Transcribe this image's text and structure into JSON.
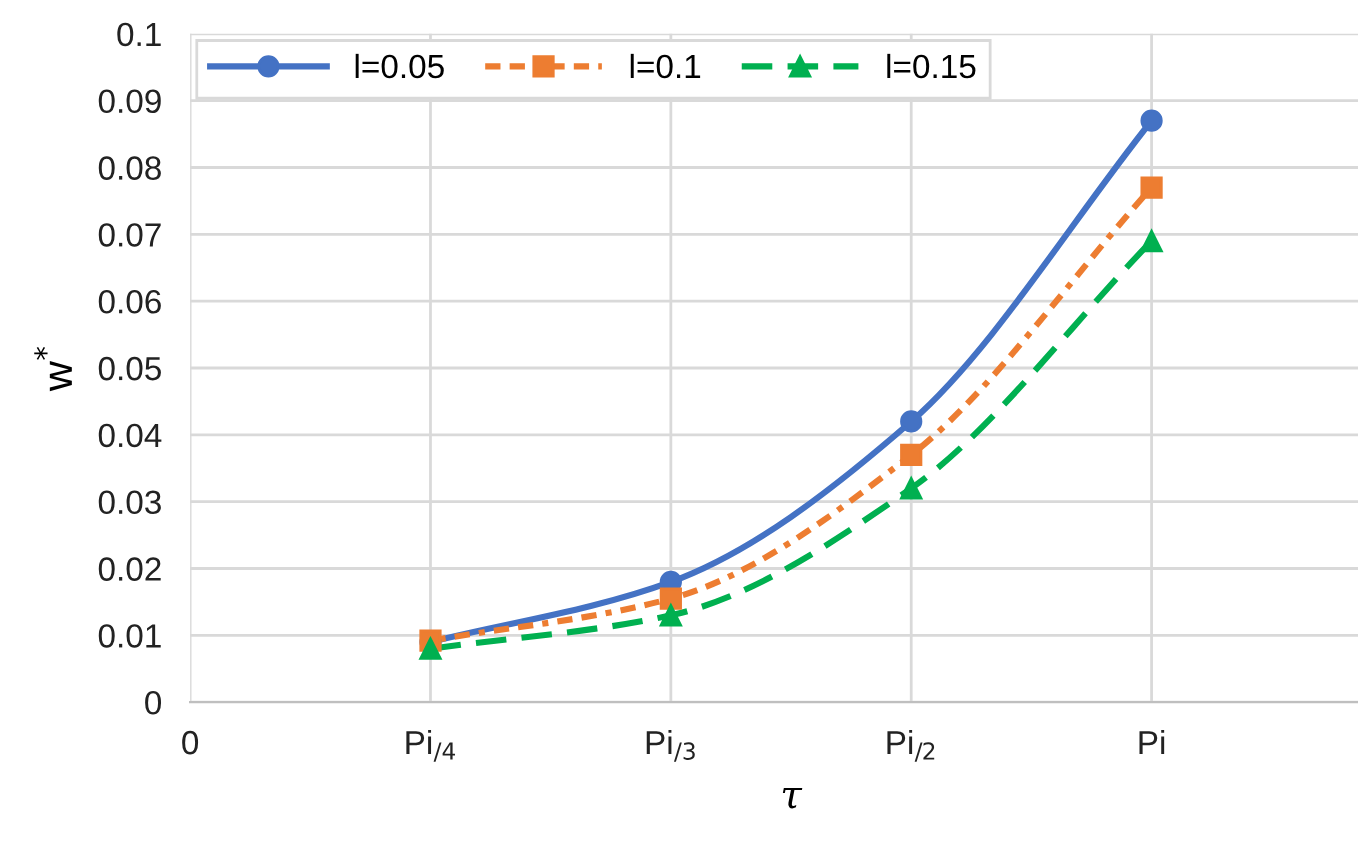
{
  "chart_data": {
    "type": "line",
    "xlabel": "τ",
    "ylabel": "w$^{*}$",
    "categories": [
      "0",
      "Pi$_{/4}$",
      "Pi$_{/3}$",
      "Pi$_{/2}$",
      "Pi",
      null
    ],
    "ylim": [
      0,
      0.1
    ],
    "yticks": [
      0,
      0.01,
      0.02,
      0.03,
      0.04,
      0.05,
      0.06,
      0.07,
      0.08,
      0.09,
      0.1
    ],
    "grid": true,
    "legend": "top",
    "series": [
      {
        "name": "l=0.05",
        "color": "#4472c4",
        "marker": "circle",
        "line_style": "solid",
        "values": [
          null,
          0.009,
          0.018,
          0.042,
          0.087,
          null
        ]
      },
      {
        "name": "l=0.1",
        "color": "#ed7d31",
        "marker": "square",
        "line_style": "dotted",
        "values": [
          null,
          0.0092,
          0.0155,
          0.037,
          0.077,
          null
        ]
      },
      {
        "name": "l=0.15",
        "color": "#00b050",
        "marker": "triangle",
        "line_style": "dashed",
        "values": [
          null,
          0.008,
          0.013,
          0.032,
          0.069,
          null
        ]
      }
    ]
  }
}
